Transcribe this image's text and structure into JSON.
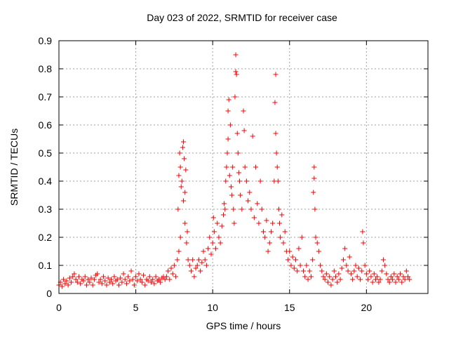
{
  "chart_data": {
    "type": "scatter",
    "title": "Day 023 of 2022, SRMTID for receiver case",
    "xlabel": "GPS time / hours",
    "ylabel": "SRMTID / TECUs",
    "xlim": [
      0,
      24
    ],
    "ylim": [
      0,
      0.9
    ],
    "xticks": [
      "0",
      "5",
      "10",
      "15",
      "20"
    ],
    "yticks": [
      "0",
      "0.1",
      "0.2",
      "0.3",
      "0.4",
      "0.5",
      "0.6",
      "0.7",
      "0.8",
      "0.9"
    ],
    "grid": true,
    "marker": "+",
    "color": "#ff0000",
    "series": [
      {
        "name": "SRMTID",
        "points": [
          [
            0.0,
            0.03
          ],
          [
            0.1,
            0.04
          ],
          [
            0.2,
            0.025
          ],
          [
            0.3,
            0.05
          ],
          [
            0.4,
            0.035
          ],
          [
            0.5,
            0.045
          ],
          [
            0.6,
            0.03
          ],
          [
            0.7,
            0.055
          ],
          [
            0.8,
            0.04
          ],
          [
            0.9,
            0.06
          ],
          [
            1.0,
            0.07
          ],
          [
            1.1,
            0.05
          ],
          [
            1.2,
            0.04
          ],
          [
            1.3,
            0.06
          ],
          [
            1.4,
            0.035
          ],
          [
            1.5,
            0.05
          ],
          [
            1.6,
            0.045
          ],
          [
            1.7,
            0.06
          ],
          [
            1.8,
            0.03
          ],
          [
            1.9,
            0.05
          ],
          [
            2.0,
            0.04
          ],
          [
            2.1,
            0.055
          ],
          [
            2.2,
            0.03
          ],
          [
            2.3,
            0.05
          ],
          [
            2.4,
            0.065
          ],
          [
            2.5,
            0.07
          ],
          [
            2.6,
            0.04
          ],
          [
            2.7,
            0.05
          ],
          [
            2.8,
            0.035
          ],
          [
            2.9,
            0.06
          ],
          [
            3.0,
            0.045
          ],
          [
            3.1,
            0.03
          ],
          [
            3.2,
            0.055
          ],
          [
            3.3,
            0.04
          ],
          [
            3.4,
            0.05
          ],
          [
            3.5,
            0.035
          ],
          [
            3.6,
            0.06
          ],
          [
            3.7,
            0.045
          ],
          [
            3.8,
            0.05
          ],
          [
            3.9,
            0.03
          ],
          [
            4.0,
            0.055
          ],
          [
            4.1,
            0.04
          ],
          [
            4.2,
            0.07
          ],
          [
            4.3,
            0.05
          ],
          [
            4.4,
            0.035
          ],
          [
            4.5,
            0.06
          ],
          [
            4.6,
            0.045
          ],
          [
            4.7,
            0.08
          ],
          [
            4.8,
            0.05
          ],
          [
            4.9,
            0.03
          ],
          [
            5.0,
            0.06
          ],
          [
            5.1,
            0.045
          ],
          [
            5.2,
            0.07
          ],
          [
            5.3,
            0.05
          ],
          [
            5.4,
            0.04
          ],
          [
            5.5,
            0.065
          ],
          [
            5.6,
            0.03
          ],
          [
            5.7,
            0.05
          ],
          [
            5.8,
            0.045
          ],
          [
            5.9,
            0.06
          ],
          [
            6.0,
            0.04
          ],
          [
            6.1,
            0.05
          ],
          [
            6.2,
            0.035
          ],
          [
            6.3,
            0.06
          ],
          [
            6.4,
            0.045
          ],
          [
            6.5,
            0.05
          ],
          [
            6.6,
            0.04
          ],
          [
            6.7,
            0.055
          ],
          [
            6.8,
            0.06
          ],
          [
            6.9,
            0.05
          ],
          [
            7.0,
            0.06
          ],
          [
            7.1,
            0.08
          ],
          [
            7.2,
            0.05
          ],
          [
            7.3,
            0.09
          ],
          [
            7.4,
            0.07
          ],
          [
            7.5,
            0.1
          ],
          [
            7.6,
            0.06
          ],
          [
            7.7,
            0.12
          ],
          [
            7.8,
            0.15
          ],
          [
            7.9,
            0.2
          ],
          [
            7.75,
            0.3
          ],
          [
            7.8,
            0.42
          ],
          [
            7.85,
            0.5
          ],
          [
            7.9,
            0.45
          ],
          [
            7.95,
            0.38
          ],
          [
            8.0,
            0.4
          ],
          [
            8.05,
            0.52
          ],
          [
            8.1,
            0.54
          ],
          [
            8.1,
            0.33
          ],
          [
            8.15,
            0.48
          ],
          [
            8.2,
            0.36
          ],
          [
            8.2,
            0.25
          ],
          [
            8.25,
            0.44
          ],
          [
            8.3,
            0.18
          ],
          [
            8.35,
            0.22
          ],
          [
            8.4,
            0.12
          ],
          [
            8.5,
            0.1
          ],
          [
            8.6,
            0.08
          ],
          [
            8.7,
            0.12
          ],
          [
            8.8,
            0.06
          ],
          [
            8.9,
            0.09
          ],
          [
            9.0,
            0.1
          ],
          [
            9.1,
            0.12
          ],
          [
            9.2,
            0.08
          ],
          [
            9.3,
            0.11
          ],
          [
            9.4,
            0.15
          ],
          [
            9.5,
            0.12
          ],
          [
            9.6,
            0.1
          ],
          [
            9.7,
            0.16
          ],
          [
            9.8,
            0.2
          ],
          [
            9.9,
            0.14
          ],
          [
            10.0,
            0.18
          ],
          [
            10.05,
            0.27
          ],
          [
            10.1,
            0.22
          ],
          [
            10.2,
            0.16
          ],
          [
            10.3,
            0.25
          ],
          [
            10.4,
            0.2
          ],
          [
            10.5,
            0.18
          ],
          [
            10.6,
            0.24
          ],
          [
            10.7,
            0.28
          ],
          [
            10.75,
            0.32
          ],
          [
            10.8,
            0.3
          ],
          [
            10.85,
            0.4
          ],
          [
            10.9,
            0.45
          ],
          [
            10.95,
            0.5
          ],
          [
            11.0,
            0.55
          ],
          [
            11.0,
            0.65
          ],
          [
            11.05,
            0.69
          ],
          [
            11.1,
            0.42
          ],
          [
            11.15,
            0.6
          ],
          [
            11.2,
            0.38
          ],
          [
            11.25,
            0.35
          ],
          [
            11.3,
            0.45
          ],
          [
            11.35,
            0.3
          ],
          [
            11.4,
            0.25
          ],
          [
            11.45,
            0.7
          ],
          [
            11.5,
            0.79
          ],
          [
            11.5,
            0.85
          ],
          [
            11.55,
            0.78
          ],
          [
            11.6,
            0.57
          ],
          [
            11.65,
            0.5
          ],
          [
            11.7,
            0.43
          ],
          [
            11.75,
            0.4
          ],
          [
            11.8,
            0.35
          ],
          [
            11.9,
            0.3
          ],
          [
            12.0,
            0.65
          ],
          [
            12.05,
            0.58
          ],
          [
            12.1,
            0.45
          ],
          [
            12.2,
            0.4
          ],
          [
            12.3,
            0.33
          ],
          [
            12.4,
            0.36
          ],
          [
            12.5,
            0.3
          ],
          [
            12.6,
            0.56
          ],
          [
            12.7,
            0.27
          ],
          [
            12.8,
            0.45
          ],
          [
            12.9,
            0.32
          ],
          [
            13.0,
            0.25
          ],
          [
            13.1,
            0.4
          ],
          [
            13.2,
            0.3
          ],
          [
            13.3,
            0.22
          ],
          [
            13.4,
            0.2
          ],
          [
            13.5,
            0.26
          ],
          [
            13.6,
            0.15
          ],
          [
            13.7,
            0.18
          ],
          [
            13.8,
            0.22
          ],
          [
            13.9,
            0.25
          ],
          [
            14.0,
            0.4
          ],
          [
            14.05,
            0.68
          ],
          [
            14.1,
            0.57
          ],
          [
            14.1,
            0.78
          ],
          [
            14.15,
            0.5
          ],
          [
            14.2,
            0.45
          ],
          [
            14.25,
            0.4
          ],
          [
            14.3,
            0.3
          ],
          [
            14.35,
            0.25
          ],
          [
            14.4,
            0.2
          ],
          [
            14.5,
            0.28
          ],
          [
            14.6,
            0.18
          ],
          [
            14.7,
            0.22
          ],
          [
            14.8,
            0.15
          ],
          [
            14.9,
            0.12
          ],
          [
            15.0,
            0.15
          ],
          [
            15.1,
            0.1
          ],
          [
            15.2,
            0.13
          ],
          [
            15.3,
            0.09
          ],
          [
            15.4,
            0.12
          ],
          [
            15.5,
            0.08
          ],
          [
            15.6,
            0.16
          ],
          [
            15.7,
            0.1
          ],
          [
            15.8,
            0.2
          ],
          [
            15.9,
            0.08
          ],
          [
            16.0,
            0.06
          ],
          [
            16.1,
            0.1
          ],
          [
            16.2,
            0.05
          ],
          [
            16.3,
            0.08
          ],
          [
            16.4,
            0.06
          ],
          [
            16.5,
            0.12
          ],
          [
            16.55,
            0.36
          ],
          [
            16.6,
            0.41
          ],
          [
            16.6,
            0.45
          ],
          [
            16.65,
            0.3
          ],
          [
            16.7,
            0.2
          ],
          [
            16.8,
            0.18
          ],
          [
            16.9,
            0.15
          ],
          [
            17.0,
            0.1
          ],
          [
            17.1,
            0.08
          ],
          [
            17.2,
            0.06
          ],
          [
            17.3,
            0.05
          ],
          [
            17.4,
            0.07
          ],
          [
            17.5,
            0.04
          ],
          [
            17.6,
            0.06
          ],
          [
            17.7,
            0.03
          ],
          [
            17.8,
            0.05
          ],
          [
            17.9,
            0.08
          ],
          [
            18.0,
            0.06
          ],
          [
            18.1,
            0.04
          ],
          [
            18.2,
            0.07
          ],
          [
            18.3,
            0.05
          ],
          [
            18.4,
            0.09
          ],
          [
            18.5,
            0.12
          ],
          [
            18.6,
            0.16
          ],
          [
            18.7,
            0.1
          ],
          [
            18.8,
            0.08
          ],
          [
            18.9,
            0.13
          ],
          [
            19.0,
            0.07
          ],
          [
            19.1,
            0.05
          ],
          [
            19.2,
            0.08
          ],
          [
            19.3,
            0.1
          ],
          [
            19.4,
            0.06
          ],
          [
            19.5,
            0.09
          ],
          [
            19.6,
            0.05
          ],
          [
            19.7,
            0.08
          ],
          [
            19.75,
            0.22
          ],
          [
            19.8,
            0.18
          ],
          [
            19.9,
            0.1
          ],
          [
            20.0,
            0.07
          ],
          [
            20.1,
            0.05
          ],
          [
            20.2,
            0.08
          ],
          [
            20.3,
            0.06
          ],
          [
            20.4,
            0.04
          ],
          [
            20.5,
            0.07
          ],
          [
            20.6,
            0.05
          ],
          [
            20.7,
            0.06
          ],
          [
            20.8,
            0.04
          ],
          [
            20.9,
            0.05
          ],
          [
            21.0,
            0.08
          ],
          [
            21.1,
            0.12
          ],
          [
            21.2,
            0.1
          ],
          [
            21.3,
            0.07
          ],
          [
            21.4,
            0.05
          ],
          [
            21.5,
            0.04
          ],
          [
            21.6,
            0.06
          ],
          [
            21.7,
            0.05
          ],
          [
            21.8,
            0.07
          ],
          [
            21.9,
            0.04
          ],
          [
            22.0,
            0.06
          ],
          [
            22.1,
            0.05
          ],
          [
            22.2,
            0.07
          ],
          [
            22.3,
            0.04
          ],
          [
            22.4,
            0.06
          ],
          [
            22.5,
            0.05
          ],
          [
            22.6,
            0.08
          ],
          [
            22.7,
            0.06
          ],
          [
            22.8,
            0.05
          ]
        ]
      }
    ]
  }
}
